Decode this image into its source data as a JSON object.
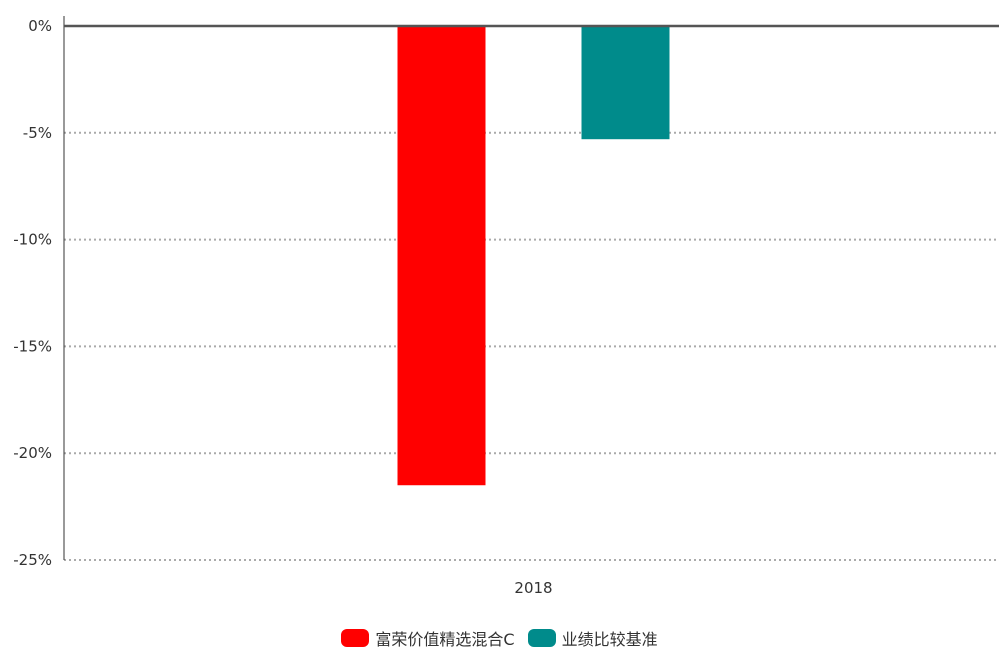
{
  "chart_data": {
    "type": "bar",
    "categories": [
      "2018"
    ],
    "series": [
      {
        "name": "富荣价值精选混合C",
        "values": [
          -21.5
        ],
        "color": "#ff0000"
      },
      {
        "name": "业绩比较基准",
        "values": [
          -5.3
        ],
        "color": "#008b8b"
      }
    ],
    "ylim": [
      -25,
      0
    ],
    "yticks": [
      0,
      -5,
      -10,
      -15,
      -20,
      -25
    ],
    "ytick_labels": [
      "0%",
      "-5%",
      "-10%",
      "-15%",
      "-20%",
      "-25%"
    ],
    "grid": true,
    "legend_position": "bottom"
  }
}
